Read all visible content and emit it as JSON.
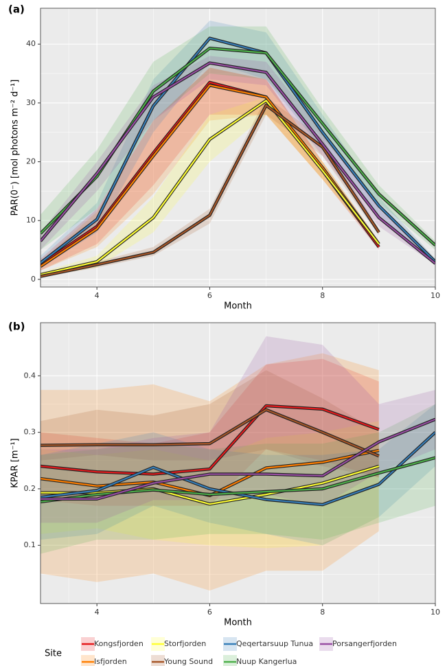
{
  "legend_title": "Site",
  "chart_data": [
    {
      "type": "line",
      "panel_label": "(a)",
      "xlabel": "Month",
      "ylabel": "PAR(0⁻) [mol photons m⁻² d⁻¹]",
      "x": [
        3,
        4,
        5,
        6,
        7,
        8,
        9,
        10
      ],
      "xlim": [
        3,
        10
      ],
      "xticks": [
        4,
        6,
        8,
        10
      ],
      "ylim": [
        -1.3,
        46.1
      ],
      "yticks": [
        0,
        10,
        20,
        30,
        40
      ],
      "grid": true,
      "series": [
        {
          "name": "Kongsfjorden",
          "color": "#e41a1c",
          "values": [
            2.5,
            9,
            21.5,
            33.5,
            31,
            18.5,
            5.5,
            null
          ],
          "lower": [
            1.5,
            6,
            16,
            28,
            28,
            17,
            5,
            null
          ],
          "upper": [
            3.5,
            12,
            27,
            36,
            34,
            20,
            6.5,
            null
          ]
        },
        {
          "name": "Isfjorden",
          "color": "#ff7f00",
          "values": [
            2.2,
            8.6,
            21,
            33,
            31,
            19,
            6,
            null
          ],
          "lower": [
            1.5,
            5.5,
            14.5,
            27,
            28,
            17,
            5.5,
            null
          ],
          "upper": [
            3,
            11.5,
            27,
            36,
            34,
            20,
            6.5,
            null
          ]
        },
        {
          "name": "Storfjorden",
          "color": "#ffff33",
          "values": [
            0.8,
            3,
            10.5,
            23.8,
            30.4,
            18.5,
            6,
            null
          ],
          "lower": [
            0.5,
            2,
            8,
            20,
            28,
            17,
            5.5,
            null
          ],
          "upper": [
            1.2,
            4,
            14,
            28,
            31,
            20,
            6.5,
            null
          ]
        },
        {
          "name": "Young Sound",
          "color": "#a65628",
          "values": [
            0.5,
            2.5,
            4.6,
            10.9,
            29.6,
            22.5,
            8,
            null
          ],
          "lower": [
            0.3,
            2,
            4,
            9.5,
            28,
            21,
            7.5,
            null
          ],
          "upper": [
            0.8,
            3,
            5.5,
            12,
            31,
            24,
            8.5,
            null
          ]
        },
        {
          "name": "Qeqertarsuup Tunua",
          "color": "#377eb8",
          "values": [
            2.8,
            10.2,
            29.5,
            41,
            38.5,
            25,
            12.5,
            3
          ],
          "lower": [
            2,
            8,
            25,
            37,
            34,
            22,
            11,
            2.5
          ],
          "upper": [
            4,
            13,
            34,
            44,
            42,
            28,
            14,
            3.5
          ]
        },
        {
          "name": "Nuup Kangerlua",
          "color": "#4daf4a",
          "values": [
            7.8,
            17.5,
            32,
            39.3,
            38.5,
            26.5,
            14.5,
            5.8
          ],
          "lower": [
            5,
            12,
            27,
            35,
            34,
            24,
            13,
            5
          ],
          "upper": [
            11,
            22,
            37,
            43,
            43,
            29,
            16,
            6.5
          ]
        },
        {
          "name": "Porsangerfjorden",
          "color": "#984ea3",
          "values": [
            6.5,
            18,
            31,
            36.8,
            35.2,
            23,
            10.5,
            2.7
          ],
          "lower": [
            5,
            15,
            27,
            34,
            33,
            21,
            9,
            2.5
          ],
          "upper": [
            8,
            20,
            33,
            38,
            37,
            25,
            12,
            3
          ]
        }
      ]
    },
    {
      "type": "line",
      "panel_label": "(b)",
      "xlabel": "Month",
      "ylabel": "KPAR [m⁻¹]",
      "x": [
        3,
        4,
        5,
        6,
        7,
        8,
        9,
        10
      ],
      "xlim": [
        3,
        10
      ],
      "xticks": [
        4,
        6,
        8,
        10
      ],
      "ylim": [
        -0.003,
        0.494
      ],
      "yticks": [
        0.1,
        0.2,
        0.3,
        0.4
      ],
      "grid": true,
      "series": [
        {
          "name": "Kongsfjorden",
          "color": "#e41a1c",
          "values": [
            0.24,
            0.23,
            0.226,
            0.235,
            0.347,
            0.341,
            0.305,
            null
          ],
          "lower": [
            0.18,
            0.17,
            0.17,
            0.17,
            0.27,
            0.25,
            0.22,
            null
          ],
          "upper": [
            0.3,
            0.29,
            0.28,
            0.3,
            0.42,
            0.43,
            0.39,
            null
          ]
        },
        {
          "name": "Isfjorden",
          "color": "#ff7f00",
          "values": [
            0.218,
            0.205,
            0.212,
            0.188,
            0.237,
            0.247,
            0.268,
            null
          ],
          "lower": [
            0.05,
            0.035,
            0.05,
            0.02,
            0.055,
            0.055,
            0.125,
            null
          ],
          "upper": [
            0.375,
            0.375,
            0.385,
            0.355,
            0.42,
            0.44,
            0.41,
            null
          ]
        },
        {
          "name": "Storfjorden",
          "color": "#ffff33",
          "values": [
            0.193,
            0.193,
            0.2,
            0.173,
            0.19,
            0.21,
            0.24,
            null
          ],
          "lower": [
            0.12,
            0.13,
            0.11,
            0.1,
            0.095,
            0.1,
            0.15,
            null
          ],
          "upper": [
            0.27,
            0.26,
            0.27,
            0.25,
            0.29,
            0.3,
            0.32,
            null
          ]
        },
        {
          "name": "Young Sound",
          "color": "#a65628",
          "values": [
            0.277,
            0.278,
            0.278,
            0.28,
            0.34,
            0.3,
            0.258,
            null
          ],
          "lower": [
            0.25,
            0.26,
            0.25,
            0.25,
            0.27,
            0.24,
            0.22,
            null
          ],
          "upper": [
            0.32,
            0.34,
            0.33,
            0.35,
            0.41,
            0.36,
            0.3,
            null
          ]
        },
        {
          "name": "Qeqertarsuup Tunua",
          "color": "#377eb8",
          "values": [
            0.185,
            0.197,
            0.238,
            0.2,
            0.181,
            0.172,
            0.208,
            0.3
          ],
          "lower": [
            0.11,
            0.12,
            0.17,
            0.14,
            0.12,
            0.1,
            0.15,
            0.24
          ],
          "upper": [
            0.26,
            0.28,
            0.3,
            0.27,
            0.26,
            0.26,
            0.27,
            0.35
          ]
        },
        {
          "name": "Nuup Kangerlua",
          "color": "#4daf4a",
          "values": [
            0.177,
            0.19,
            0.198,
            0.19,
            0.195,
            0.2,
            0.228,
            0.255
          ],
          "lower": [
            0.085,
            0.11,
            0.11,
            0.12,
            0.12,
            0.11,
            0.14,
            0.17
          ],
          "upper": [
            0.26,
            0.27,
            0.28,
            0.27,
            0.28,
            0.28,
            0.3,
            0.35
          ]
        },
        {
          "name": "Porsangerfjorden",
          "color": "#984ea3",
          "values": [
            0.182,
            0.182,
            0.21,
            0.226,
            0.226,
            0.223,
            0.283,
            0.323
          ],
          "lower": [
            0.14,
            0.14,
            0.18,
            0.18,
            0.19,
            0.17,
            0.23,
            0.27
          ],
          "upper": [
            0.27,
            0.27,
            0.29,
            0.3,
            0.47,
            0.455,
            0.35,
            0.375
          ]
        }
      ]
    }
  ]
}
